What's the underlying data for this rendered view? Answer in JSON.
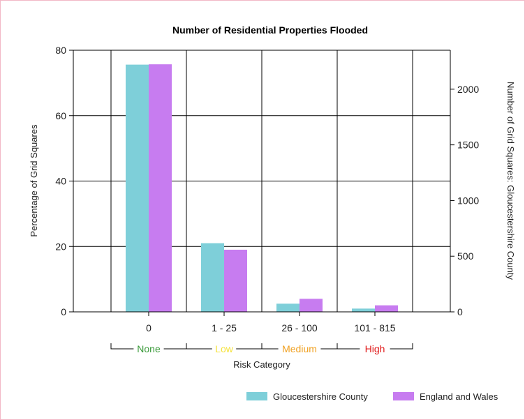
{
  "chart_data": {
    "type": "bar",
    "title": "Number of Residential Properties Flooded",
    "categories": [
      "0",
      "1 - 25",
      "26 - 100",
      "101 - 815"
    ],
    "series": [
      {
        "name": "Gloucestershire County",
        "values": [
          75.6,
          21.0,
          2.5,
          1.0
        ],
        "color": "#7ecfd9"
      },
      {
        "name": "England and Wales",
        "values": [
          75.7,
          19.0,
          4.0,
          2.0
        ],
        "color": "#c77cf0"
      }
    ],
    "ylabel": "Percentage of Grid Squares",
    "ylim": [
      0,
      80
    ],
    "yticks": [
      0,
      20,
      40,
      60,
      80
    ],
    "y2label": "Number of Grid Squares: Gloucestershire County",
    "y2lim": [
      0,
      2350
    ],
    "y2ticks": [
      0,
      500,
      1000,
      1500,
      2000
    ],
    "xlabel": "Risk Category",
    "risk_groups": [
      {
        "label": "None",
        "color": "#3a9a3a"
      },
      {
        "label": "Low",
        "color": "#f5e23a"
      },
      {
        "label": "Medium",
        "color": "#f0a020"
      },
      {
        "label": "High",
        "color": "#e01818"
      }
    ],
    "grid": true,
    "legend": "bottom-right"
  }
}
